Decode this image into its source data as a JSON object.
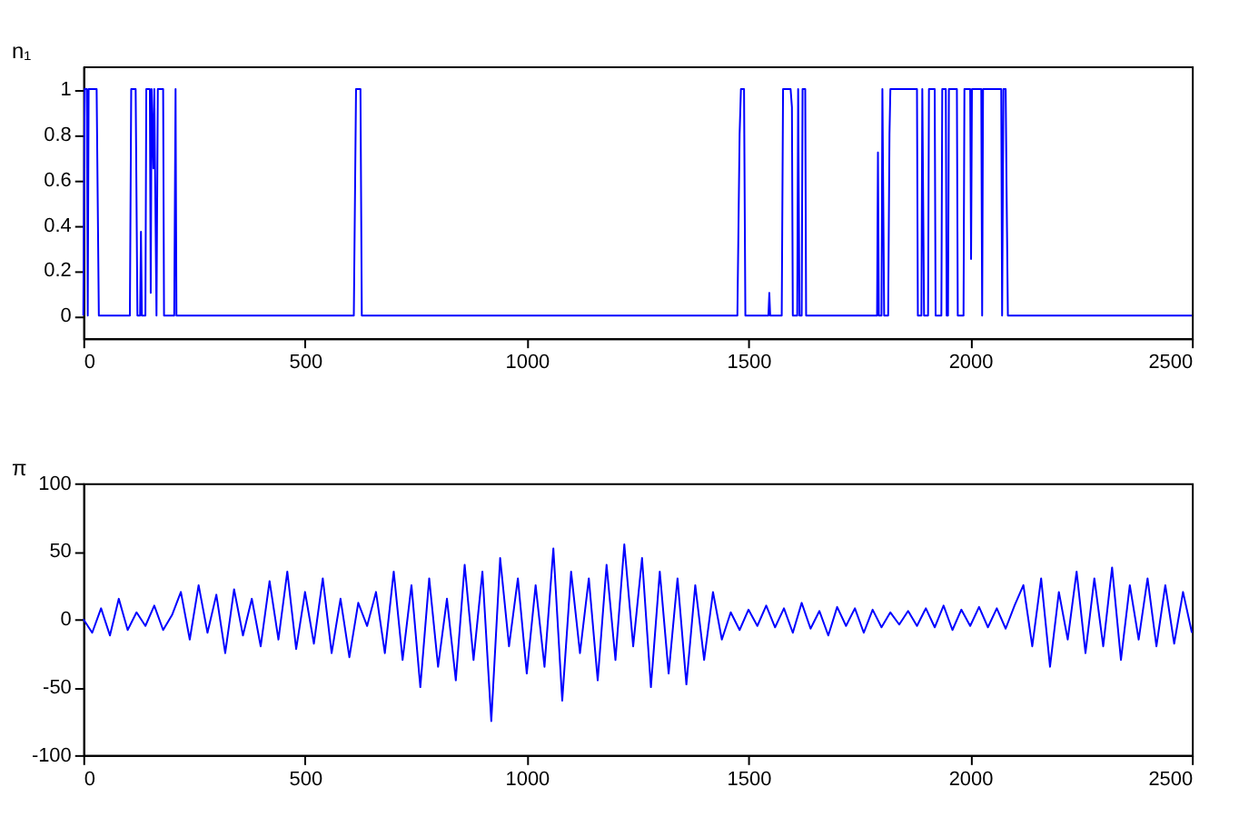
{
  "chart_data": [
    {
      "type": "line",
      "ylabel": "n₁",
      "xlim": [
        0,
        2500
      ],
      "xticks": [
        0,
        500,
        1000,
        1500,
        2000,
        2500
      ],
      "ylim": [
        -0.1,
        1.1
      ],
      "yticks": [
        0,
        0.2,
        0.4,
        0.6,
        0.8,
        1
      ],
      "grid": false,
      "x": [
        0,
        3,
        8,
        10,
        12,
        30,
        35,
        105,
        108,
        118,
        122,
        128,
        130,
        132,
        140,
        142,
        150,
        152,
        154,
        158,
        160,
        165,
        168,
        180,
        182,
        205,
        208,
        210,
        610,
        615,
        625,
        628,
        1475,
        1480,
        1483,
        1490,
        1493,
        1545,
        1547,
        1549,
        1575,
        1578,
        1595,
        1598,
        1600,
        1610,
        1612,
        1615,
        1620,
        1622,
        1628,
        1630,
        1790,
        1792,
        1794,
        1800,
        1802,
        1806,
        1815,
        1818,
        1820,
        1880,
        1882,
        1890,
        1892,
        1896,
        1905,
        1907,
        1920,
        1922,
        1935,
        1937,
        1945,
        1947,
        1950,
        1952,
        1970,
        1972,
        1985,
        1987,
        2000,
        2002,
        2004,
        2025,
        2027,
        2029,
        2070,
        2072,
        2075,
        2080,
        2082,
        2085,
        2500
      ],
      "series": [
        {
          "color": "#0000ff",
          "values": [
            0,
            1,
            1,
            0,
            1,
            1,
            0,
            0,
            1,
            1,
            0,
            0,
            0.37,
            0,
            0,
            1,
            1,
            0.1,
            1,
            0.65,
            1,
            0,
            1,
            1,
            0,
            0,
            1,
            0,
            0,
            1,
            1,
            0,
            0,
            0.8,
            1,
            1,
            0,
            0,
            0.1,
            0,
            0,
            1,
            1,
            0.92,
            0,
            0,
            1,
            0,
            0,
            1,
            1,
            0,
            0,
            0.72,
            0,
            0,
            1,
            0,
            0,
            0.8,
            1,
            1,
            0,
            0,
            1,
            0,
            0,
            1,
            1,
            0,
            0,
            1,
            1,
            0,
            0,
            1,
            1,
            0,
            0,
            1,
            1,
            0.25,
            1,
            1,
            0,
            1,
            1,
            0,
            1,
            1,
            0.57,
            0,
            0
          ]
        }
      ]
    },
    {
      "type": "line",
      "ylabel": "π",
      "xlim": [
        0,
        2500
      ],
      "xticks": [
        0,
        500,
        1000,
        1500,
        2000,
        2500
      ],
      "ylim": [
        -100,
        100
      ],
      "yticks": [
        -100,
        -50,
        0,
        50,
        100
      ],
      "grid": false,
      "x": [
        0,
        20,
        40,
        60,
        80,
        100,
        120,
        140,
        160,
        180,
        200,
        220,
        240,
        260,
        280,
        300,
        320,
        340,
        360,
        380,
        400,
        420,
        440,
        460,
        480,
        500,
        520,
        540,
        560,
        580,
        600,
        620,
        640,
        660,
        680,
        700,
        720,
        740,
        760,
        780,
        800,
        820,
        840,
        860,
        880,
        900,
        920,
        940,
        960,
        980,
        1000,
        1020,
        1040,
        1060,
        1080,
        1100,
        1120,
        1140,
        1160,
        1180,
        1200,
        1220,
        1240,
        1260,
        1280,
        1300,
        1320,
        1340,
        1360,
        1380,
        1400,
        1420,
        1440,
        1460,
        1480,
        1500,
        1520,
        1540,
        1560,
        1580,
        1600,
        1620,
        1640,
        1660,
        1680,
        1700,
        1720,
        1740,
        1760,
        1780,
        1800,
        1820,
        1840,
        1860,
        1880,
        1900,
        1920,
        1940,
        1960,
        1980,
        2000,
        2020,
        2040,
        2060,
        2080,
        2100,
        2120,
        2140,
        2160,
        2180,
        2200,
        2220,
        2240,
        2260,
        2280,
        2300,
        2320,
        2340,
        2360,
        2380,
        2400,
        2420,
        2440,
        2460,
        2480,
        2500
      ],
      "series": [
        {
          "color": "#0000ff",
          "values": [
            0,
            -10,
            8,
            -12,
            15,
            -8,
            5,
            -5,
            10,
            -8,
            3,
            20,
            -15,
            25,
            -10,
            18,
            -25,
            22,
            -12,
            15,
            -20,
            28,
            -15,
            35,
            -22,
            20,
            -18,
            30,
            -25,
            15,
            -28,
            12,
            -5,
            20,
            -25,
            35,
            -30,
            25,
            -50,
            30,
            -35,
            15,
            -45,
            40,
            -30,
            35,
            -75,
            45,
            -20,
            30,
            -40,
            25,
            -35,
            52,
            -60,
            35,
            -25,
            30,
            -45,
            40,
            -30,
            55,
            -20,
            45,
            -50,
            35,
            -40,
            30,
            -48,
            25,
            -30,
            20,
            -15,
            5,
            -8,
            7,
            -5,
            10,
            -6,
            8,
            -10,
            12,
            -7,
            6,
            -12,
            9,
            -5,
            8,
            -10,
            7,
            -6,
            5,
            -4,
            6,
            -5,
            8,
            -6,
            10,
            -8,
            7,
            -5,
            9,
            -6,
            8,
            -7,
            10,
            25,
            -20,
            30,
            -35,
            20,
            -15,
            35,
            -25,
            30,
            -20,
            38,
            -30,
            25,
            -15,
            30,
            -20,
            25,
            -18,
            20,
            -10
          ]
        }
      ]
    }
  ]
}
